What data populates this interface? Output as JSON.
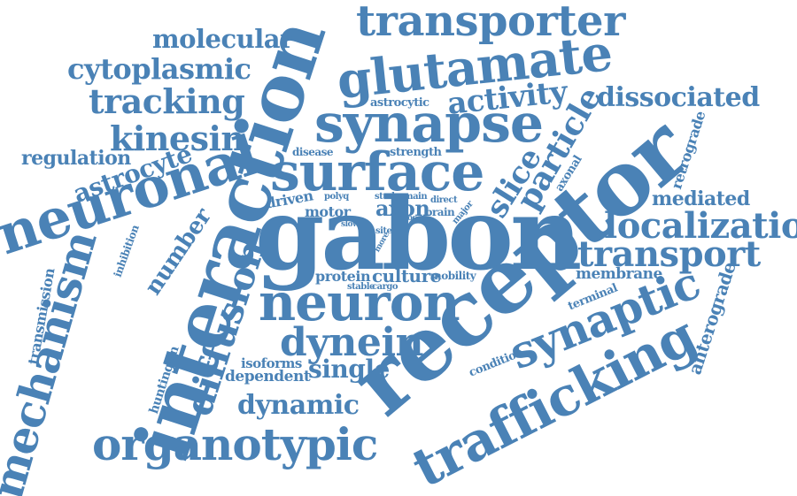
{
  "color": "#4a82b6",
  "words": [
    "gabon",
    "receptor",
    "interaction",
    "synapse",
    "surface",
    "neuronal",
    "neuron",
    "glutamate",
    "trafficking",
    "transporter",
    "organotypic",
    "synaptic",
    "mechanism",
    "dynein",
    "diffusion",
    "localization",
    "transport",
    "kinesin",
    "tracking",
    "cytoplasmic",
    "molecular",
    "particle",
    "activity",
    "dissociated",
    "slice",
    "astrocyte",
    "regulation",
    "dynamic",
    "single",
    "number",
    "mediated",
    "anterograde",
    "retrograde",
    "membrane",
    "culture",
    "protein",
    "axon",
    "motor",
    "driven",
    "dependent",
    "isoforms",
    "huntingtin",
    "transmission",
    "inhibition",
    "axonal",
    "strength",
    "disease",
    "astrocytic",
    "terminal",
    "condition",
    "mobility",
    "cargo",
    "stable",
    "study",
    "main",
    "direct",
    "brain",
    "major",
    "polyq",
    "site",
    "proc",
    "more",
    "slow"
  ]
}
